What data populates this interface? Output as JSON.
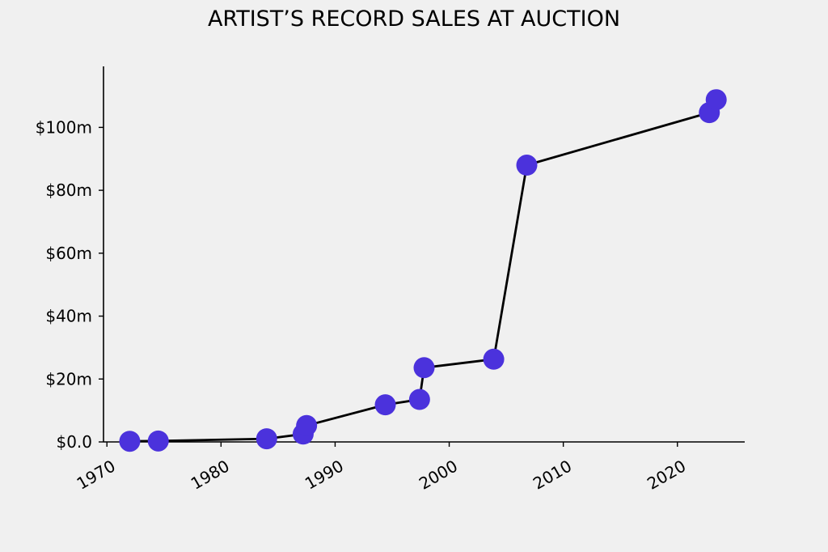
{
  "chart_data": {
    "type": "line",
    "title": "ARTIST’S RECORD SALES AT AUCTION",
    "xlabel": "",
    "ylabel": "",
    "x_ticks": [
      1970,
      1980,
      1990,
      2000,
      2010,
      2020
    ],
    "x_tick_labels": [
      "1970",
      "1980",
      "1990",
      "2000",
      "2010",
      "2020"
    ],
    "y_ticks": [
      0,
      20,
      40,
      60,
      80,
      100
    ],
    "y_tick_labels": [
      "$0.0",
      "$20m",
      "$40m",
      "$60m",
      "$80m",
      "$100m"
    ],
    "xlim": [
      1969.7,
      2025.9
    ],
    "ylim": [
      0,
      119.4
    ],
    "grid": false,
    "legend": "none",
    "colors": {
      "line": "#000000",
      "marker": "#4b32dc",
      "background": "#f0f0f0"
    },
    "series": [
      {
        "x": [
          1972.0,
          1974.5,
          1984.0,
          1987.2,
          1987.5,
          1994.4,
          1997.4,
          1997.8,
          2003.9,
          2006.8,
          2022.8,
          2023.4
        ],
        "y": [
          0.2,
          0.3,
          1.0,
          2.5,
          5.2,
          11.8,
          13.5,
          23.6,
          26.3,
          88.0,
          104.7,
          108.8
        ]
      }
    ]
  }
}
